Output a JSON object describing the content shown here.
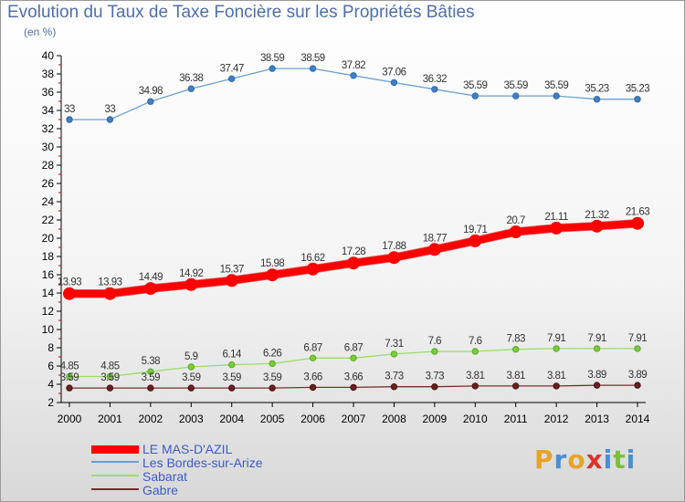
{
  "title": "Evolution du Taux de Taxe Foncière sur les Propriétés Bâties",
  "unit_label": "(en %)",
  "logo": {
    "text": "Proxiti",
    "letters": [
      {
        "ch": "P",
        "color": "#e8a427"
      },
      {
        "ch": "r",
        "color": "#4a8fd1"
      },
      {
        "ch": "o",
        "color": "#e8a427"
      },
      {
        "ch": "x",
        "color": "#d9342b"
      },
      {
        "ch": "i",
        "color": "#4a8fd1"
      },
      {
        "ch": "t",
        "color": "#7cbf3a"
      },
      {
        "ch": "i",
        "color": "#4a8fd1"
      }
    ]
  },
  "chart_data": {
    "type": "line",
    "title": "Evolution du Taux de Taxe Foncière sur les Propriétés Bâties",
    "ylabel": "(en %)",
    "xlabel": "",
    "x": [
      "2000",
      "2001",
      "2002",
      "2003",
      "2004",
      "2005",
      "2006",
      "2007",
      "2008",
      "2009",
      "2010",
      "2011",
      "2012",
      "2013",
      "2014"
    ],
    "ylim": [
      2,
      40
    ],
    "yticks": [
      2,
      4,
      6,
      8,
      10,
      12,
      14,
      16,
      18,
      20,
      22,
      24,
      26,
      28,
      30,
      32,
      34,
      36,
      38,
      40
    ],
    "grid": false,
    "legend_position": "bottom-left",
    "series": [
      {
        "name": "LE MAS-D'AZIL",
        "color": "#ff0000",
        "labels": [
          "13.93",
          "13.93",
          "14.49",
          "14.92",
          "15.37",
          "15.98",
          "16.62",
          "17.28",
          "17.88",
          "18.77",
          "19.71",
          "20.7",
          "21.11",
          "21.32",
          "21.63"
        ],
        "values": [
          13.93,
          13.93,
          14.49,
          14.92,
          15.37,
          15.98,
          16.62,
          17.28,
          17.88,
          18.77,
          19.71,
          20.7,
          21.11,
          21.32,
          21.63
        ]
      },
      {
        "name": "Les Bordes-sur-Arize",
        "color": "#6a9fd4",
        "labels": [
          "33",
          "33",
          "34.98",
          "36.38",
          "37.47",
          "38.59",
          "38.59",
          "37.82",
          "37.06",
          "36.32",
          "35.59",
          "35.59",
          "35.59",
          "35.23",
          "35.23"
        ],
        "values": [
          33,
          33,
          34.98,
          36.38,
          37.47,
          38.59,
          38.59,
          37.82,
          37.06,
          36.32,
          35.59,
          35.59,
          35.59,
          35.23,
          35.23
        ]
      },
      {
        "name": "Sabarat",
        "color": "#99dd66",
        "labels": [
          "4.85",
          "4.85",
          "5.38",
          "5.9",
          "6.14",
          "6.26",
          "6.87",
          "6.87",
          "7.31",
          "7.6",
          "7.6",
          "7.83",
          "7.91",
          "7.91",
          "7.91"
        ],
        "values": [
          4.85,
          4.85,
          5.38,
          5.9,
          6.14,
          6.26,
          6.87,
          6.87,
          7.31,
          7.6,
          7.6,
          7.83,
          7.91,
          7.91,
          7.91
        ]
      },
      {
        "name": "Gabre",
        "color": "#7a2e2e",
        "labels": [
          "3.59",
          "3.59",
          "3.59",
          "3.59",
          "3.59",
          "3.59",
          "3.66",
          "3.66",
          "3.73",
          "3.73",
          "3.81",
          "3.81",
          "3.81",
          "3.89",
          "3.89"
        ],
        "values": [
          3.59,
          3.59,
          3.59,
          3.59,
          3.59,
          3.59,
          3.66,
          3.66,
          3.73,
          3.73,
          3.81,
          3.81,
          3.81,
          3.89,
          3.89
        ]
      }
    ]
  }
}
